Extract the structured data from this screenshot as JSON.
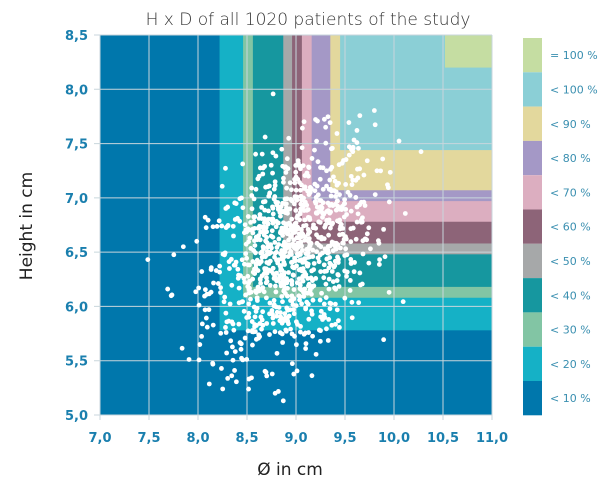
{
  "chart_data": {
    "type": "scatter",
    "title": "H x D of all 1020 patients of the study",
    "xlabel": "Ø in cm",
    "ylabel": "Height in cm",
    "xlim": [
      7.0,
      11.0
    ],
    "ylim": [
      5.0,
      8.5
    ],
    "x_ticks": [
      "7,0",
      "7,5",
      "8,0",
      "8,5",
      "9,0",
      "9,5",
      "10,0",
      "10,5",
      "11,0"
    ],
    "y_ticks": [
      "5,0",
      "5,5",
      "6,0",
      "6,5",
      "7,0",
      "7,5",
      "8,0",
      "8,5"
    ],
    "grid": true,
    "legend_position": "right",
    "point_count": 1020,
    "point_color": "#ffffff",
    "regions": [
      {
        "label": "< 10 %",
        "color": "#0077ac",
        "d": 7.0,
        "h": 5.0
      },
      {
        "label": "< 20 %",
        "color": "#15b1c6",
        "d": 8.22,
        "h": 5.78
      },
      {
        "label": "< 30 %",
        "color": "#82c5a4",
        "d": 8.46,
        "h": 6.08
      },
      {
        "label": "< 40 %",
        "color": "#16979f",
        "d": 8.56,
        "h": 6.18
      },
      {
        "label": "< 50 %",
        "color": "#a6a8a9",
        "d": 8.87,
        "h": 6.48
      },
      {
        "label": "< 60 %",
        "color": "#8d6478",
        "d": 8.96,
        "h": 6.58
      },
      {
        "label": "< 70 %",
        "color": "#dcaec0",
        "d": 9.06,
        "h": 6.78
      },
      {
        "label": "< 80 %",
        "color": "#a498c6",
        "d": 9.16,
        "h": 6.97
      },
      {
        "label": "< 90 %",
        "color": "#e3d89d",
        "d": 9.35,
        "h": 7.07
      },
      {
        "label": "< 100 %",
        "color": "#8bcfd6",
        "d": 9.45,
        "h": 7.44
      },
      {
        "label": "= 100 %",
        "color": "#c5dda2",
        "d": 10.52,
        "h": 8.2
      }
    ],
    "legend": [
      {
        "label": "= 100 %",
        "color": "#c5dda2"
      },
      {
        "label": "< 100 %",
        "color": "#8bcfd6"
      },
      {
        "label": "< 90 %",
        "color": "#e3d89d"
      },
      {
        "label": "< 80 %",
        "color": "#a498c6"
      },
      {
        "label": "< 70 %",
        "color": "#dcaec0"
      },
      {
        "label": "< 60 %",
        "color": "#8d6478"
      },
      {
        "label": "< 50 %",
        "color": "#a6a8a9"
      },
      {
        "label": "< 40 %",
        "color": "#16979f"
      },
      {
        "label": "< 30 %",
        "color": "#82c5a4"
      },
      {
        "label": "< 20 %",
        "color": "#15b1c6"
      },
      {
        "label": "< 10 %",
        "color": "#0077ac"
      }
    ],
    "distribution": {
      "mean_d": 8.95,
      "sd_d": 0.42,
      "mean_h": 6.5,
      "sd_h": 0.5,
      "correlation": 0.35
    }
  }
}
